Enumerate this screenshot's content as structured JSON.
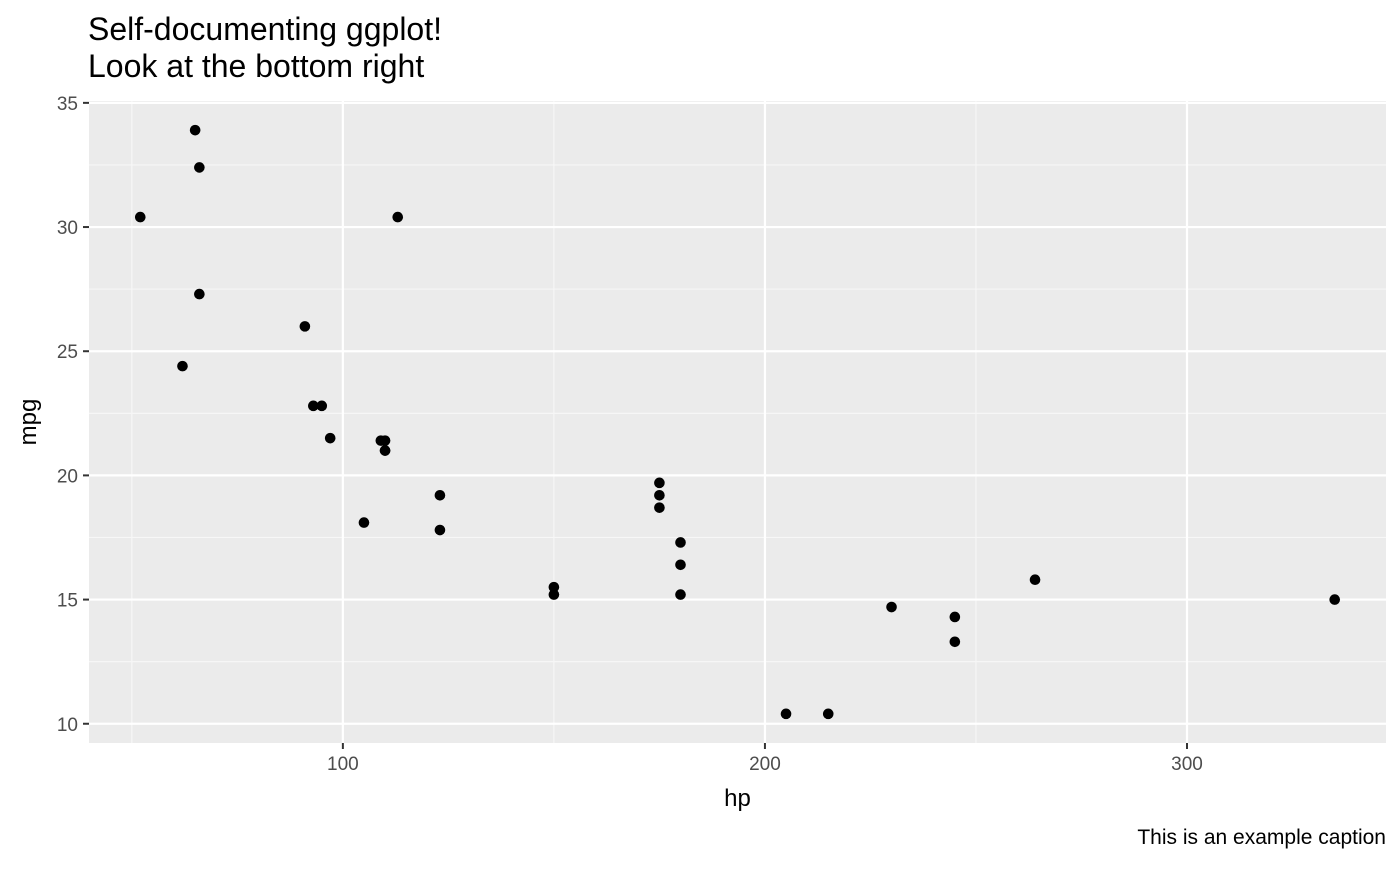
{
  "chart_data": {
    "type": "scatter",
    "title": "Self-documenting ggplot!",
    "subtitle": "Look at the bottom right",
    "xlabel": "hp",
    "ylabel": "mpg",
    "caption": "This is an example caption",
    "xlim": [
      39.85,
      347.15
    ],
    "ylim": [
      9.225,
      35.075
    ],
    "x_ticks": [
      100,
      200,
      300
    ],
    "x_tick_labels": [
      "100",
      "200",
      "300"
    ],
    "y_ticks": [
      10,
      15,
      20,
      25,
      30,
      35
    ],
    "y_tick_labels": [
      "10",
      "15",
      "20",
      "25",
      "30",
      "35"
    ],
    "x_minor_ticks": [
      50,
      150,
      250
    ],
    "y_minor_ticks": [
      12.5,
      17.5,
      22.5,
      27.5,
      32.5
    ],
    "grid": true,
    "legend": "none",
    "colors": {
      "panel_background": "#ebebeb",
      "grid_major": "#ffffff",
      "grid_minor": "#f7f7f7",
      "point": "#000000",
      "tick_label": "#4d4d4d",
      "tick_mark": "#333333"
    },
    "points": [
      {
        "x": 110,
        "y": 21.0
      },
      {
        "x": 110,
        "y": 21.0
      },
      {
        "x": 93,
        "y": 22.8
      },
      {
        "x": 110,
        "y": 21.4
      },
      {
        "x": 175,
        "y": 18.7
      },
      {
        "x": 105,
        "y": 18.1
      },
      {
        "x": 245,
        "y": 14.3
      },
      {
        "x": 62,
        "y": 24.4
      },
      {
        "x": 95,
        "y": 22.8
      },
      {
        "x": 123,
        "y": 19.2
      },
      {
        "x": 123,
        "y": 17.8
      },
      {
        "x": 180,
        "y": 16.4
      },
      {
        "x": 180,
        "y": 17.3
      },
      {
        "x": 180,
        "y": 15.2
      },
      {
        "x": 205,
        "y": 10.4
      },
      {
        "x": 215,
        "y": 10.4
      },
      {
        "x": 230,
        "y": 14.7
      },
      {
        "x": 66,
        "y": 32.4
      },
      {
        "x": 52,
        "y": 30.4
      },
      {
        "x": 65,
        "y": 33.9
      },
      {
        "x": 97,
        "y": 21.5
      },
      {
        "x": 150,
        "y": 15.5
      },
      {
        "x": 150,
        "y": 15.2
      },
      {
        "x": 245,
        "y": 13.3
      },
      {
        "x": 175,
        "y": 19.2
      },
      {
        "x": 66,
        "y": 27.3
      },
      {
        "x": 91,
        "y": 26.0
      },
      {
        "x": 113,
        "y": 30.4
      },
      {
        "x": 264,
        "y": 15.8
      },
      {
        "x": 175,
        "y": 19.7
      },
      {
        "x": 335,
        "y": 15.0
      },
      {
        "x": 109,
        "y": 21.4
      }
    ]
  }
}
